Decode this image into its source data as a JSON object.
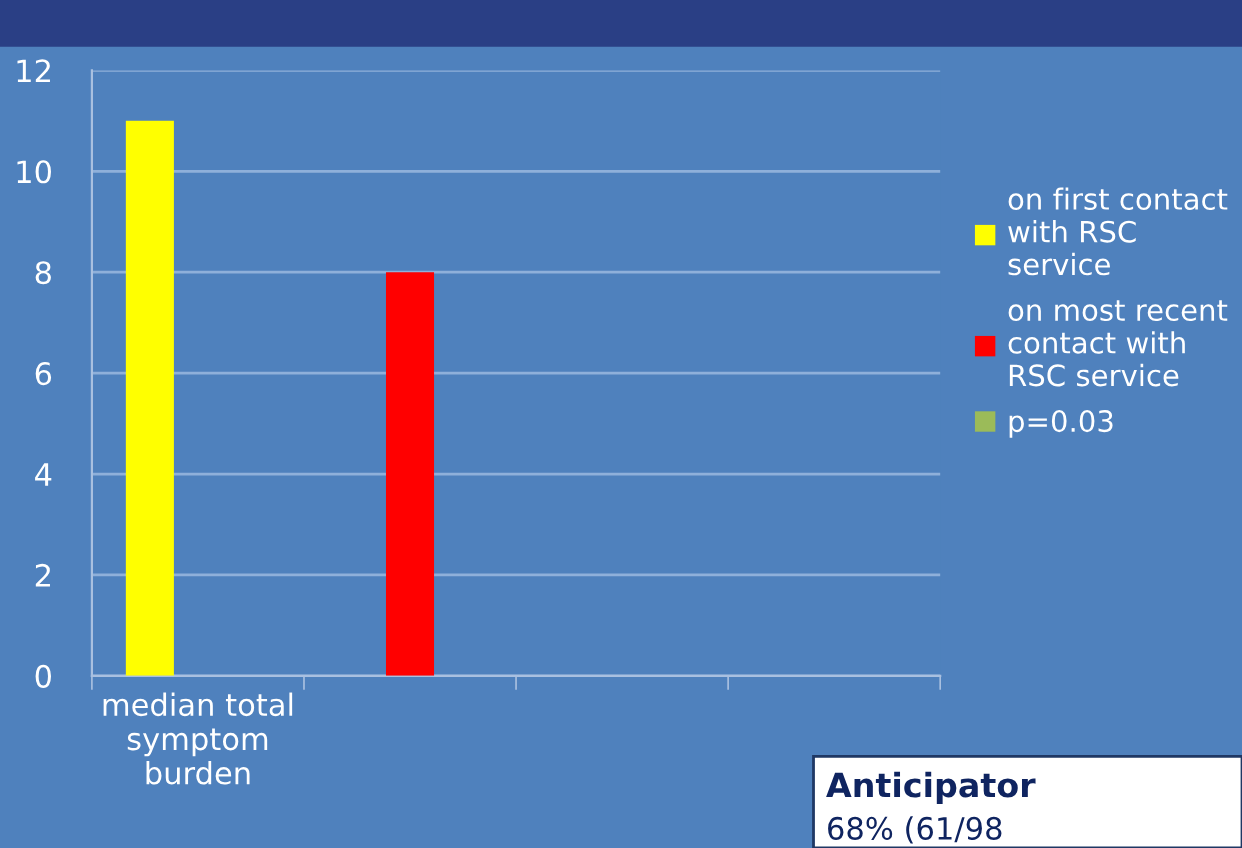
{
  "chart_data": {
    "type": "bar",
    "categories": [
      "median total\nsymptom\nburden",
      null,
      null,
      null
    ],
    "series": [
      {
        "name": "on first contact\nwith RSC\nservice",
        "color": "#ffff00",
        "values": [
          11,
          null,
          null,
          null
        ]
      },
      {
        "name": "on most recent\ncontact with\nRSC service",
        "color": "#ff0000",
        "values": [
          null,
          8,
          null,
          null
        ]
      },
      {
        "name": "p=0.03",
        "color": "#9bbb59",
        "values": [
          null,
          null,
          null,
          null
        ]
      }
    ],
    "ylim": [
      0,
      12
    ],
    "yticks": [
      0,
      2,
      4,
      6,
      8,
      10,
      12
    ],
    "grid": "y",
    "legend": "right",
    "annotations": [
      "Anticipator",
      "68% (61/98"
    ]
  }
}
